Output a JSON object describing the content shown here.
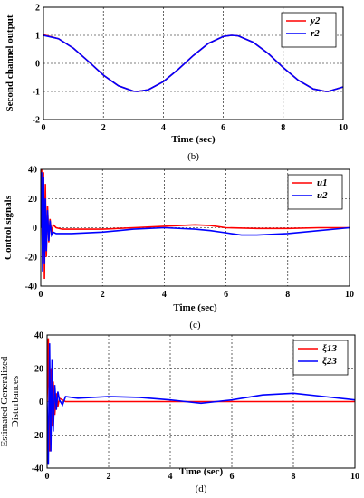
{
  "chart_data": [
    {
      "type": "line",
      "caption": "(b)",
      "xlabel": "Time (sec)",
      "ylabel": "Second channel output",
      "xlim": [
        0,
        10
      ],
      "ylim": [
        -2,
        2
      ],
      "xticks": [
        "0",
        "2",
        "4",
        "6",
        "8",
        "10"
      ],
      "yticks": [
        "-2",
        "-1",
        "0",
        "1",
        "2"
      ],
      "grid": true,
      "legend_position": "top-right",
      "series": [
        {
          "name": "y2",
          "color": "#ff0000",
          "x": [
            0,
            0.5,
            1,
            1.5,
            2,
            2.5,
            3,
            3.14,
            3.5,
            4,
            4.5,
            5,
            5.5,
            6,
            6.28,
            6.5,
            7,
            7.5,
            8,
            8.5,
            9,
            9.42,
            9.5,
            10
          ],
          "y": [
            1.02,
            0.88,
            0.54,
            0.07,
            -0.42,
            -0.8,
            -0.99,
            -1.0,
            -0.94,
            -0.65,
            -0.21,
            0.28,
            0.71,
            0.96,
            1.0,
            0.98,
            0.75,
            0.35,
            -0.15,
            -0.6,
            -0.91,
            -1.0,
            -1.0,
            -0.84
          ]
        },
        {
          "name": "r2",
          "color": "#0000ff",
          "x": [
            0,
            0.5,
            1,
            1.5,
            2,
            2.5,
            3,
            3.14,
            3.5,
            4,
            4.5,
            5,
            5.5,
            6,
            6.28,
            6.5,
            7,
            7.5,
            8,
            8.5,
            9,
            9.42,
            9.5,
            10
          ],
          "y": [
            1.0,
            0.88,
            0.54,
            0.07,
            -0.42,
            -0.8,
            -0.99,
            -1.0,
            -0.94,
            -0.65,
            -0.21,
            0.28,
            0.71,
            0.96,
            1.0,
            0.98,
            0.75,
            0.35,
            -0.15,
            -0.6,
            -0.91,
            -1.0,
            -1.0,
            -0.84
          ]
        }
      ]
    },
    {
      "type": "line",
      "caption": "(c)",
      "xlabel": "Time (sec)",
      "ylabel": "Control signals",
      "xlim": [
        0,
        10
      ],
      "ylim": [
        -40,
        40
      ],
      "xticks": [
        "0",
        "2",
        "4",
        "6",
        "8",
        "10"
      ],
      "yticks": [
        "-40",
        "-20",
        "0",
        "20",
        "40"
      ],
      "grid": true,
      "legend_position": "top-right",
      "series": [
        {
          "name": "u1",
          "color": "#ff0000",
          "x": [
            0,
            0.03,
            0.06,
            0.09,
            0.12,
            0.15,
            0.18,
            0.22,
            0.26,
            0.3,
            0.35,
            0.4,
            0.5,
            0.7,
            1,
            2,
            3,
            4,
            4.5,
            5,
            5.5,
            6,
            7,
            8,
            9,
            10
          ],
          "y": [
            0,
            40,
            -25,
            38,
            -35,
            30,
            -20,
            15,
            -10,
            6,
            -4,
            2,
            0,
            -1,
            -1,
            -1,
            0,
            1,
            1.5,
            2,
            1.5,
            0,
            -0.5,
            -0.5,
            0,
            0
          ]
        },
        {
          "name": "u2",
          "color": "#0000ff",
          "x": [
            0,
            0.03,
            0.06,
            0.09,
            0.12,
            0.15,
            0.18,
            0.22,
            0.26,
            0.3,
            0.35,
            0.4,
            0.5,
            0.7,
            1,
            2,
            3,
            4,
            5,
            5.5,
            6,
            6.5,
            7,
            8,
            9,
            10
          ],
          "y": [
            0,
            38,
            -30,
            35,
            -25,
            20,
            -16,
            12,
            -9,
            5,
            -5,
            -3,
            -4,
            -4,
            -4,
            -3,
            -1,
            0,
            -1,
            -2,
            -3.5,
            -5,
            -5,
            -4,
            -2,
            0
          ]
        }
      ]
    },
    {
      "type": "line",
      "caption": "(d)",
      "xlabel": "Time (sec)",
      "ylabel_line1": "Estimated Generalized",
      "ylabel_line2": "Disturbances",
      "xlim": [
        0,
        10
      ],
      "ylim": [
        -40,
        40
      ],
      "xticks": [
        "0",
        "2",
        "4",
        "6",
        "8",
        "10"
      ],
      "yticks": [
        "-40",
        "-20",
        "0",
        "20",
        "40"
      ],
      "grid": true,
      "legend_position": "top-right",
      "series": [
        {
          "name": "ξ13",
          "color": "#ff0000",
          "x": [
            0,
            0.04,
            0.08,
            0.12,
            0.16,
            0.2,
            0.25,
            0.3,
            0.35,
            0.4,
            0.5,
            0.6,
            0.8,
            1,
            2,
            3,
            4,
            5,
            6,
            7,
            8,
            9,
            10
          ],
          "y": [
            0,
            38,
            -30,
            20,
            -15,
            12,
            -8,
            5,
            -3,
            2,
            1,
            0,
            0,
            0,
            0,
            0,
            0,
            0,
            0,
            0,
            0,
            0,
            0
          ]
        },
        {
          "name": "ξ23",
          "color": "#0000ff",
          "x": [
            0,
            0.04,
            0.08,
            0.12,
            0.16,
            0.2,
            0.25,
            0.3,
            0.35,
            0.4,
            0.5,
            0.6,
            0.8,
            1,
            2,
            3,
            4,
            4.5,
            5,
            5.5,
            6,
            7,
            8,
            9,
            10
          ],
          "y": [
            0,
            -38,
            35,
            -30,
            25,
            -18,
            10,
            -5,
            6,
            1,
            -2,
            3,
            2.5,
            2,
            3,
            2.5,
            1,
            0,
            -1,
            0,
            1,
            4,
            5,
            3,
            1
          ]
        }
      ]
    }
  ]
}
